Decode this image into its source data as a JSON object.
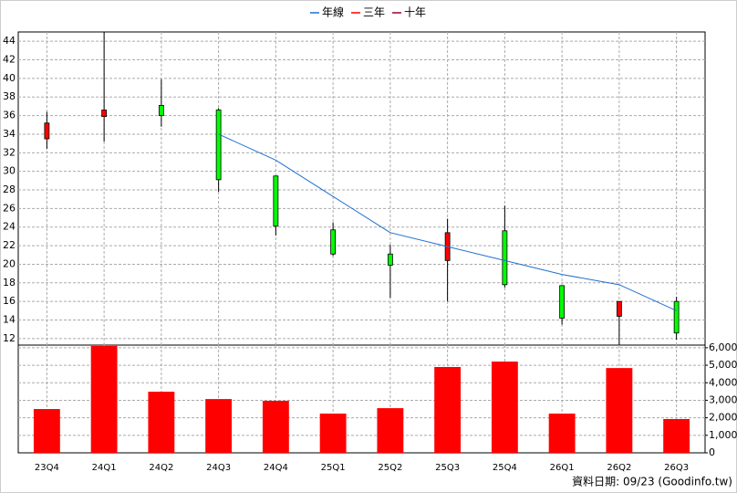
{
  "chart_data": {
    "type": "candlestick",
    "categories": [
      "23Q4",
      "24Q1",
      "24Q2",
      "24Q3",
      "24Q4",
      "25Q1",
      "25Q2",
      "25Q3",
      "25Q4",
      "26Q1",
      "26Q2",
      "26Q3"
    ],
    "open": [
      33.5,
      35.9,
      37.1,
      36.6,
      29.5,
      23.7,
      21.1,
      20.4,
      23.6,
      17.7,
      14.4,
      16.0
    ],
    "high": [
      36.4,
      45.0,
      39.9,
      36.8,
      29.5,
      24.5,
      22.1,
      24.9,
      26.3,
      17.7,
      16.0,
      16.5
    ],
    "low": [
      32.4,
      33.2,
      34.8,
      27.8,
      23.1,
      20.9,
      16.4,
      16.0,
      17.5,
      13.5,
      11.3,
      11.9
    ],
    "close": [
      35.2,
      36.6,
      36.0,
      29.1,
      24.1,
      21.1,
      19.9,
      23.4,
      17.8,
      14.2,
      16.0,
      12.6
    ],
    "up_color": "#ff0000",
    "down_color": "#00ff00",
    "ylim": [
      11.3,
      45
    ],
    "yticks": [
      12,
      14,
      16,
      18,
      20,
      22,
      24,
      26,
      28,
      30,
      32,
      34,
      36,
      38,
      40,
      42,
      44
    ],
    "grid": true,
    "lines": [
      {
        "name": "年線",
        "color": "#1e6fd0",
        "values": [
          null,
          null,
          null,
          34.0,
          31.2,
          27.3,
          23.4,
          21.9,
          20.4,
          18.9,
          17.8,
          15.0
        ]
      },
      {
        "name": "三年",
        "color": "#ff0000",
        "values": [
          null,
          null,
          null,
          null,
          null,
          null,
          null,
          null,
          null,
          null,
          null,
          null
        ]
      },
      {
        "name": "十年",
        "color": "#990033",
        "values": [
          null,
          null,
          null,
          null,
          null,
          null,
          null,
          null,
          null,
          null,
          null,
          null
        ]
      }
    ],
    "volume": {
      "type": "bar",
      "color": "#ff0000",
      "values": [
        2500,
        6100,
        3490,
        3070,
        2970,
        2240,
        2550,
        4900,
        5210,
        2240,
        4840,
        1930
      ],
      "ylim": [
        0,
        6150
      ],
      "yticks": [
        0,
        {
          "value": 1000,
          "label": "1,000"
        },
        {
          "value": 2000,
          "label": "2,000"
        },
        {
          "value": 3000,
          "label": "3,000"
        },
        {
          "value": 4000,
          "label": "4,000"
        },
        {
          "value": 5000,
          "label": "5,000"
        },
        {
          "value": 6000,
          "label": "6,000"
        }
      ]
    },
    "footer": "資料日期: 09/23 (Goodinfo.tw)"
  }
}
